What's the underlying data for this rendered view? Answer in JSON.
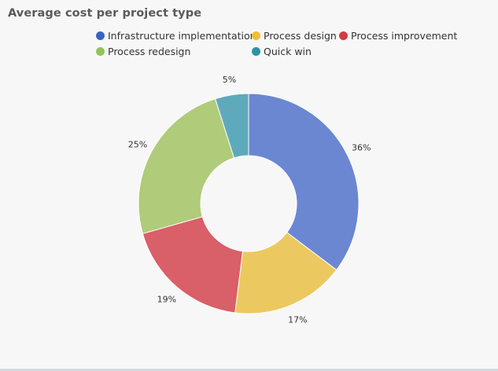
{
  "chart_data": {
    "type": "pie",
    "title": "Average cost per project type",
    "donut": true,
    "legend_position": "top",
    "categories": [
      "Infrastructure implementation",
      "Process design",
      "Process improvement",
      "Process redesign",
      "Quick win"
    ],
    "values": [
      36,
      17,
      19,
      25,
      5
    ],
    "value_labels": [
      "36%",
      "17%",
      "19%",
      "25%",
      "5%"
    ],
    "legend_colors": [
      "#3b63c4",
      "#f2bf2f",
      "#d23a45",
      "#94c35a",
      "#2a95a6"
    ],
    "slice_colors": [
      "#6b87d2",
      "#ecc960",
      "#d95f68",
      "#b0cb7a",
      "#5eaabc"
    ]
  }
}
